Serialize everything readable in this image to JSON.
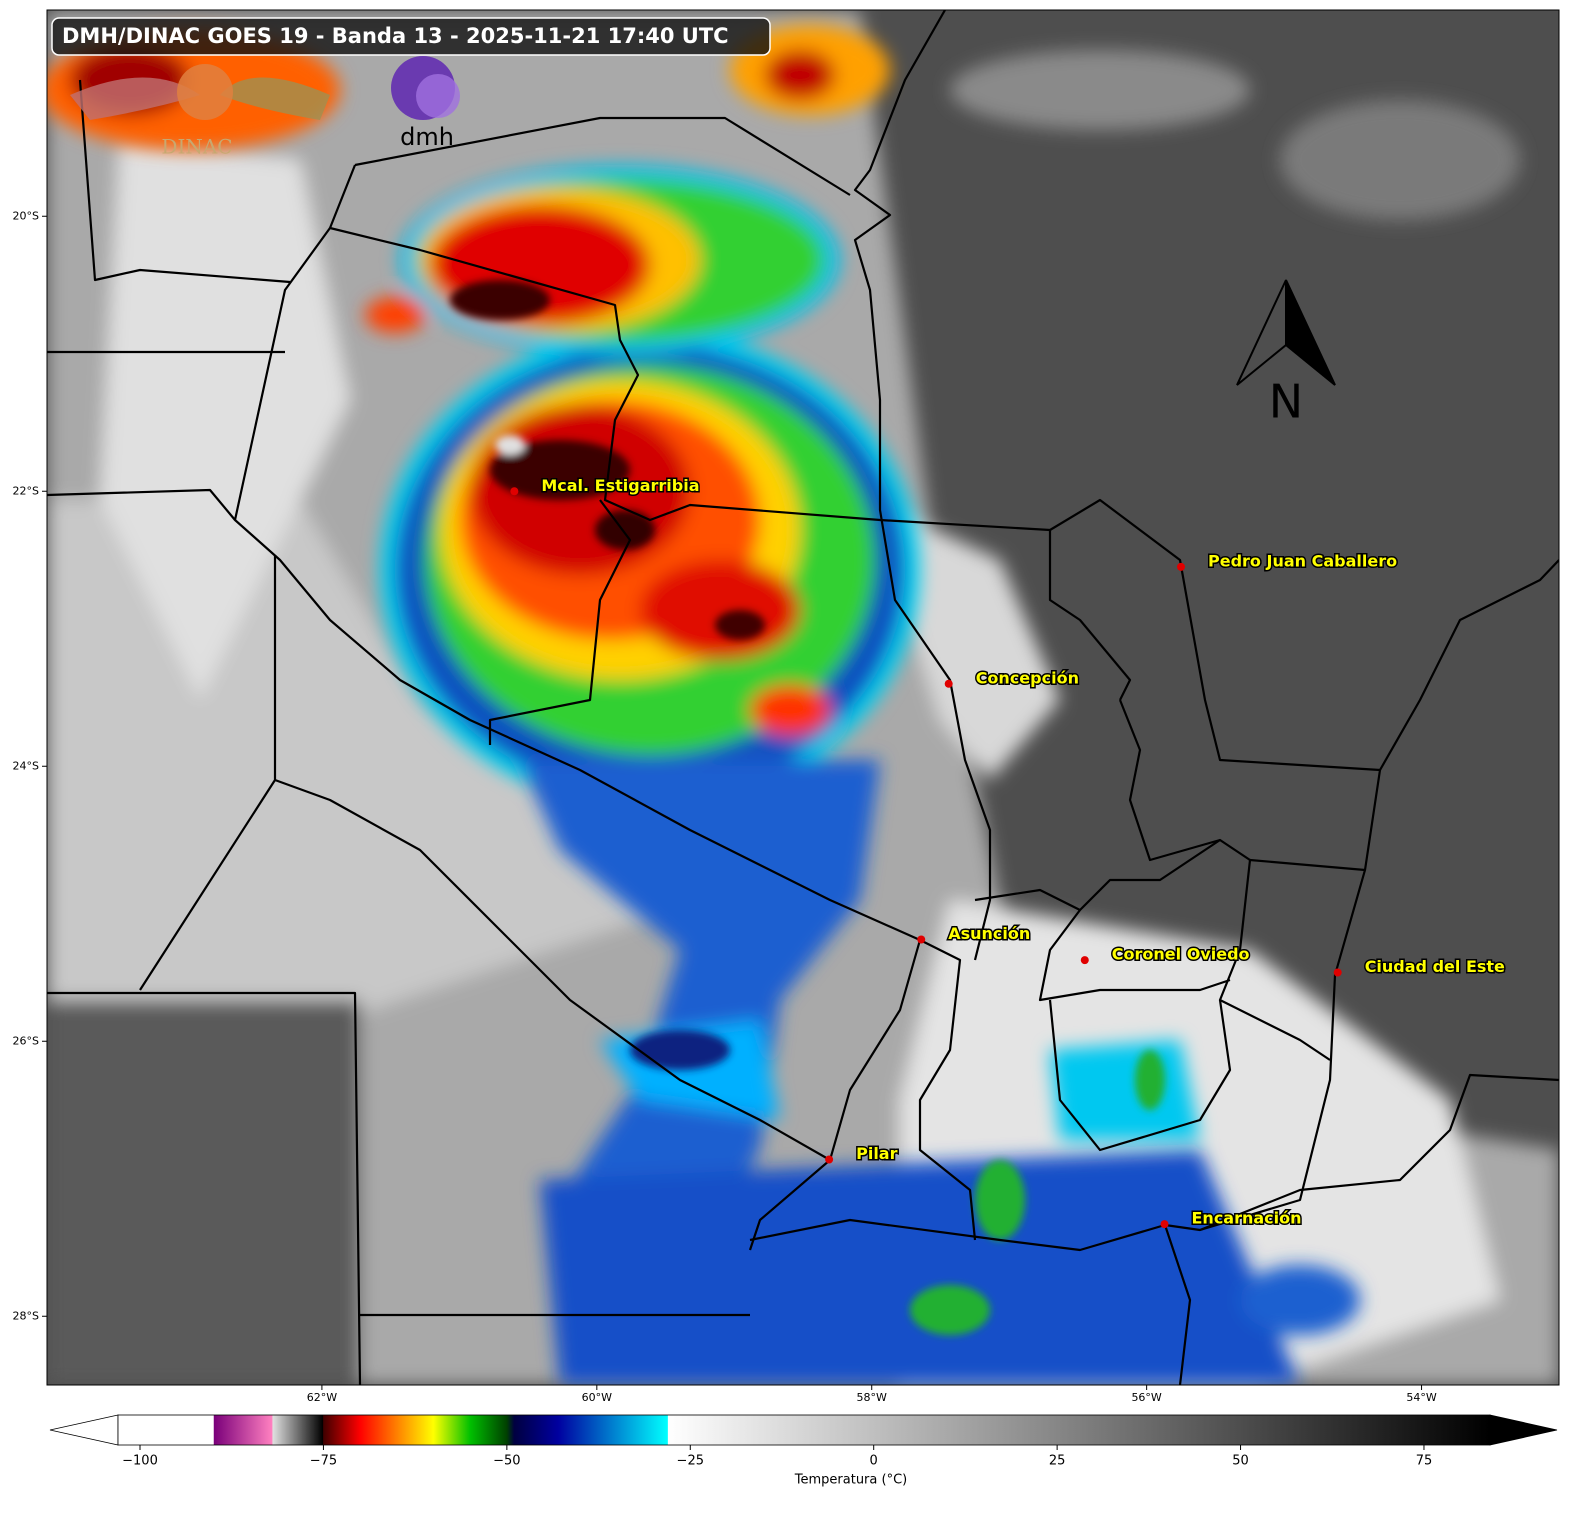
{
  "title": "DMH/DINAC GOES 19 - Banda 13 - 2025-11-21 17:40 UTC",
  "logos": {
    "dinac": "DINAC",
    "dmh": "dmh"
  },
  "north_arrow": "N",
  "map": {
    "lonlim": [
      -64,
      -53
    ],
    "latlim": [
      -28.5,
      -18.5
    ],
    "xticks": [
      {
        "value": -62,
        "label": "62°W"
      },
      {
        "value": -60,
        "label": "60°W"
      },
      {
        "value": -58,
        "label": "58°W"
      },
      {
        "value": -56,
        "label": "56°W"
      },
      {
        "value": -54,
        "label": "54°W"
      }
    ],
    "yticks": [
      {
        "value": -20,
        "label": "20°S"
      },
      {
        "value": -22,
        "label": "22°S"
      },
      {
        "value": -24,
        "label": "24°S"
      },
      {
        "value": -26,
        "label": "26°S"
      },
      {
        "value": -28,
        "label": "28°S"
      }
    ],
    "marker_color": "#e00000",
    "label_color": "#ffff00",
    "cities": [
      {
        "name": "Mcal. Estigarribia",
        "lon": -60.6,
        "lat": -22.0
      },
      {
        "name": "Pedro Juan Caballero",
        "lon": -55.75,
        "lat": -22.55
      },
      {
        "name": "Concepción",
        "lon": -57.44,
        "lat": -23.4
      },
      {
        "name": "Asunción",
        "lon": -57.64,
        "lat": -25.26
      },
      {
        "name": "Coronel Oviedo",
        "lon": -56.45,
        "lat": -25.41
      },
      {
        "name": "Ciudad del Este",
        "lon": -54.61,
        "lat": -25.5
      },
      {
        "name": "Pilar",
        "lon": -58.31,
        "lat": -26.86
      },
      {
        "name": "Encarnación",
        "lon": -55.87,
        "lat": -27.33
      }
    ]
  },
  "colorbar": {
    "label": "Temperatura (°C)",
    "lim": [
      -103,
      84
    ],
    "ticks": [
      {
        "value": -100,
        "label": "−100"
      },
      {
        "value": -75,
        "label": "−75"
      },
      {
        "value": -50,
        "label": "−50"
      },
      {
        "value": -25,
        "label": "−25"
      },
      0,
      25,
      50,
      75
    ],
    "stops": [
      {
        "value": -103,
        "color": "#ffffff"
      },
      {
        "value": -90,
        "color": "#ffffff"
      },
      {
        "value": -89.9,
        "color": "#7a007a"
      },
      {
        "value": -82,
        "color": "#ff80c0"
      },
      {
        "value": -81.9,
        "color": "#e0e0e0"
      },
      {
        "value": -75.1,
        "color": "#000000"
      },
      {
        "value": -75,
        "color": "#400000"
      },
      {
        "value": -70,
        "color": "#ff0000"
      },
      {
        "value": -65,
        "color": "#ff8000"
      },
      {
        "value": -60,
        "color": "#ffff00"
      },
      {
        "value": -55,
        "color": "#00c000"
      },
      {
        "value": -50,
        "color": "#004000"
      },
      {
        "value": -49,
        "color": "#000040"
      },
      {
        "value": -43,
        "color": "#0000a0"
      },
      {
        "value": -28.1,
        "color": "#00ffff"
      },
      {
        "value": -28,
        "color": "#ffffff"
      },
      {
        "value": 84,
        "color": "#000000"
      }
    ]
  }
}
